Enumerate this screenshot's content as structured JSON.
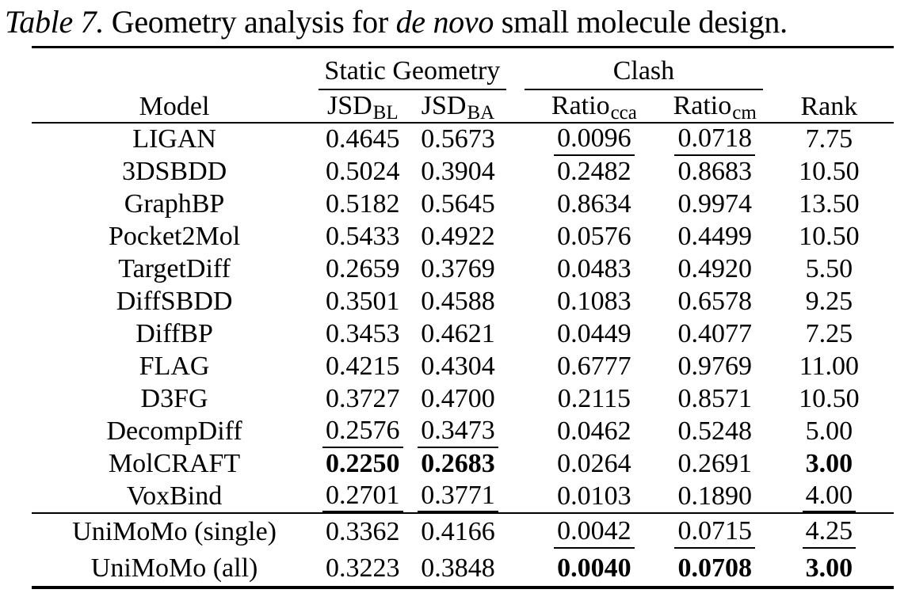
{
  "colors": {
    "text": "#000000",
    "background": "#ffffff"
  },
  "caption": {
    "label": "Table 7.",
    "text1": " Geometry analysis for ",
    "emph": "de novo",
    "text2": " small molecule design."
  },
  "table": {
    "headers": {
      "model": "Model",
      "group_static": "Static Geometry",
      "group_clash": "Clash",
      "rank": "Rank"
    },
    "subheaders": [
      {
        "base": "JSD",
        "sub": "BL"
      },
      {
        "base": "JSD",
        "sub": "BA"
      },
      {
        "base": "Ratio",
        "sub": "cca"
      },
      {
        "base": "Ratio",
        "sub": "cm"
      }
    ],
    "rows": [
      {
        "model": "LIGAN",
        "values": [
          {
            "v": "0.4645"
          },
          {
            "v": "0.5673"
          },
          {
            "v": "0.0096",
            "u": true
          },
          {
            "v": "0.0718",
            "u": true
          },
          {
            "v": "7.75"
          }
        ]
      },
      {
        "model": "3DSBDD",
        "values": [
          {
            "v": "0.5024"
          },
          {
            "v": "0.3904"
          },
          {
            "v": "0.2482"
          },
          {
            "v": "0.8683"
          },
          {
            "v": "10.50"
          }
        ]
      },
      {
        "model": "GraphBP",
        "values": [
          {
            "v": "0.5182"
          },
          {
            "v": "0.5645"
          },
          {
            "v": "0.8634"
          },
          {
            "v": "0.9974"
          },
          {
            "v": "13.50"
          }
        ]
      },
      {
        "model": "Pocket2Mol",
        "values": [
          {
            "v": "0.5433"
          },
          {
            "v": "0.4922"
          },
          {
            "v": "0.0576"
          },
          {
            "v": "0.4499"
          },
          {
            "v": "10.50"
          }
        ]
      },
      {
        "model": "TargetDiff",
        "values": [
          {
            "v": "0.2659"
          },
          {
            "v": "0.3769"
          },
          {
            "v": "0.0483"
          },
          {
            "v": "0.4920"
          },
          {
            "v": "5.50"
          }
        ]
      },
      {
        "model": "DiffSBDD",
        "values": [
          {
            "v": "0.3501"
          },
          {
            "v": "0.4588"
          },
          {
            "v": "0.1083"
          },
          {
            "v": "0.6578"
          },
          {
            "v": "9.25"
          }
        ]
      },
      {
        "model": "DiffBP",
        "values": [
          {
            "v": "0.3453"
          },
          {
            "v": "0.4621"
          },
          {
            "v": "0.0449"
          },
          {
            "v": "0.4077"
          },
          {
            "v": "7.25"
          }
        ]
      },
      {
        "model": "FLAG",
        "values": [
          {
            "v": "0.4215"
          },
          {
            "v": "0.4304"
          },
          {
            "v": "0.6777"
          },
          {
            "v": "0.9769"
          },
          {
            "v": "11.00"
          }
        ]
      },
      {
        "model": "D3FG",
        "values": [
          {
            "v": "0.3727"
          },
          {
            "v": "0.4700"
          },
          {
            "v": "0.2115"
          },
          {
            "v": "0.8571"
          },
          {
            "v": "10.50"
          }
        ]
      },
      {
        "model": "DecompDiff",
        "values": [
          {
            "v": "0.2576",
            "u": true
          },
          {
            "v": "0.3473",
            "u": true
          },
          {
            "v": "0.0462"
          },
          {
            "v": "0.5248"
          },
          {
            "v": "5.00"
          }
        ]
      },
      {
        "model": "MolCRAFT",
        "values": [
          {
            "v": "0.2250",
            "b": true
          },
          {
            "v": "0.2683",
            "b": true
          },
          {
            "v": "0.0264"
          },
          {
            "v": "0.2691"
          },
          {
            "v": "3.00",
            "b": true
          }
        ]
      },
      {
        "model": "VoxBind",
        "rule_after": true,
        "values": [
          {
            "v": "0.2701",
            "u": true
          },
          {
            "v": "0.3771",
            "u": true
          },
          {
            "v": "0.0103"
          },
          {
            "v": "0.1890"
          },
          {
            "v": "4.00",
            "u": true
          }
        ]
      },
      {
        "model": "UniMoMo (single)",
        "tall": true,
        "values": [
          {
            "v": "0.3362"
          },
          {
            "v": "0.4166"
          },
          {
            "v": "0.0042",
            "u": true
          },
          {
            "v": "0.0715",
            "u": true
          },
          {
            "v": "4.25",
            "u": true
          }
        ]
      },
      {
        "model": "UniMoMo (all)",
        "tall": true,
        "values": [
          {
            "v": "0.3223"
          },
          {
            "v": "0.3848"
          },
          {
            "v": "0.0040",
            "b": true
          },
          {
            "v": "0.0708",
            "b": true
          },
          {
            "v": "3.00",
            "b": true
          }
        ]
      }
    ]
  }
}
